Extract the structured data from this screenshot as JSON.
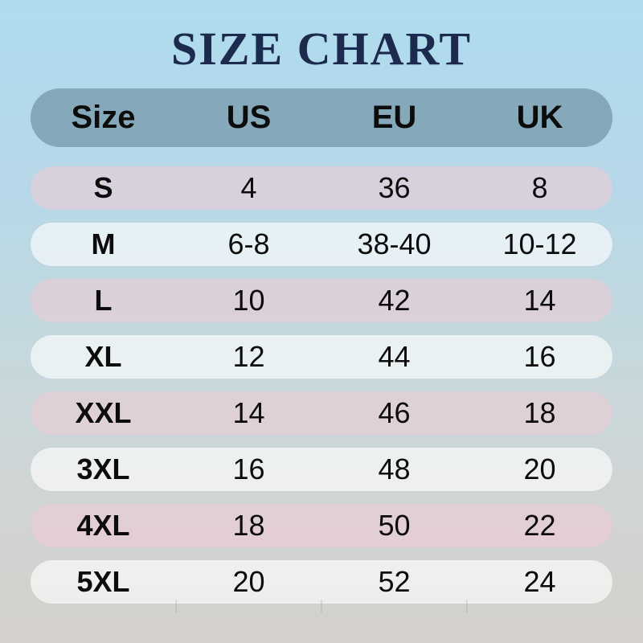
{
  "page": {
    "title": "SIZE CHART"
  },
  "colors": {
    "title_color": "#1c2a4e",
    "bg_top": "#aedcee",
    "bg_bottom": "#d4d0cb",
    "header_bg": "#85a9ba",
    "row_pink": "#ecccd5",
    "row_light": "#ffffff",
    "text": "#0c0c0c"
  },
  "table": {
    "columns": [
      "Size",
      "US",
      "EU",
      "UK"
    ],
    "rows": [
      {
        "size": "S",
        "us": "4",
        "eu": "36",
        "uk": "8"
      },
      {
        "size": "M",
        "us": "6-8",
        "eu": "38-40",
        "uk": "10-12"
      },
      {
        "size": "L",
        "us": "10",
        "eu": "42",
        "uk": "14"
      },
      {
        "size": "XL",
        "us": "12",
        "eu": "44",
        "uk": "16"
      },
      {
        "size": "XXL",
        "us": "14",
        "eu": "46",
        "uk": "18"
      },
      {
        "size": "3XL",
        "us": "16",
        "eu": "48",
        "uk": "20"
      },
      {
        "size": "4XL",
        "us": "18",
        "eu": "50",
        "uk": "22"
      },
      {
        "size": "5XL",
        "us": "20",
        "eu": "52",
        "uk": "24"
      }
    ]
  },
  "chart_data": {
    "type": "table",
    "title": "SIZE CHART",
    "columns": [
      "Size",
      "US",
      "EU",
      "UK"
    ],
    "rows": [
      [
        "S",
        "4",
        "36",
        "8"
      ],
      [
        "M",
        "6-8",
        "38-40",
        "10-12"
      ],
      [
        "L",
        "10",
        "42",
        "14"
      ],
      [
        "XL",
        "12",
        "44",
        "16"
      ],
      [
        "XXL",
        "14",
        "46",
        "18"
      ],
      [
        "3XL",
        "16",
        "48",
        "20"
      ],
      [
        "4XL",
        "18",
        "50",
        "22"
      ],
      [
        "5XL",
        "20",
        "52",
        "24"
      ]
    ],
    "layout_hints": {
      "alternating_row_colors": [
        "pink",
        "white"
      ],
      "rows_are_rounded_pills": true,
      "background": "vertical gradient light-blue to warm-gray"
    }
  }
}
